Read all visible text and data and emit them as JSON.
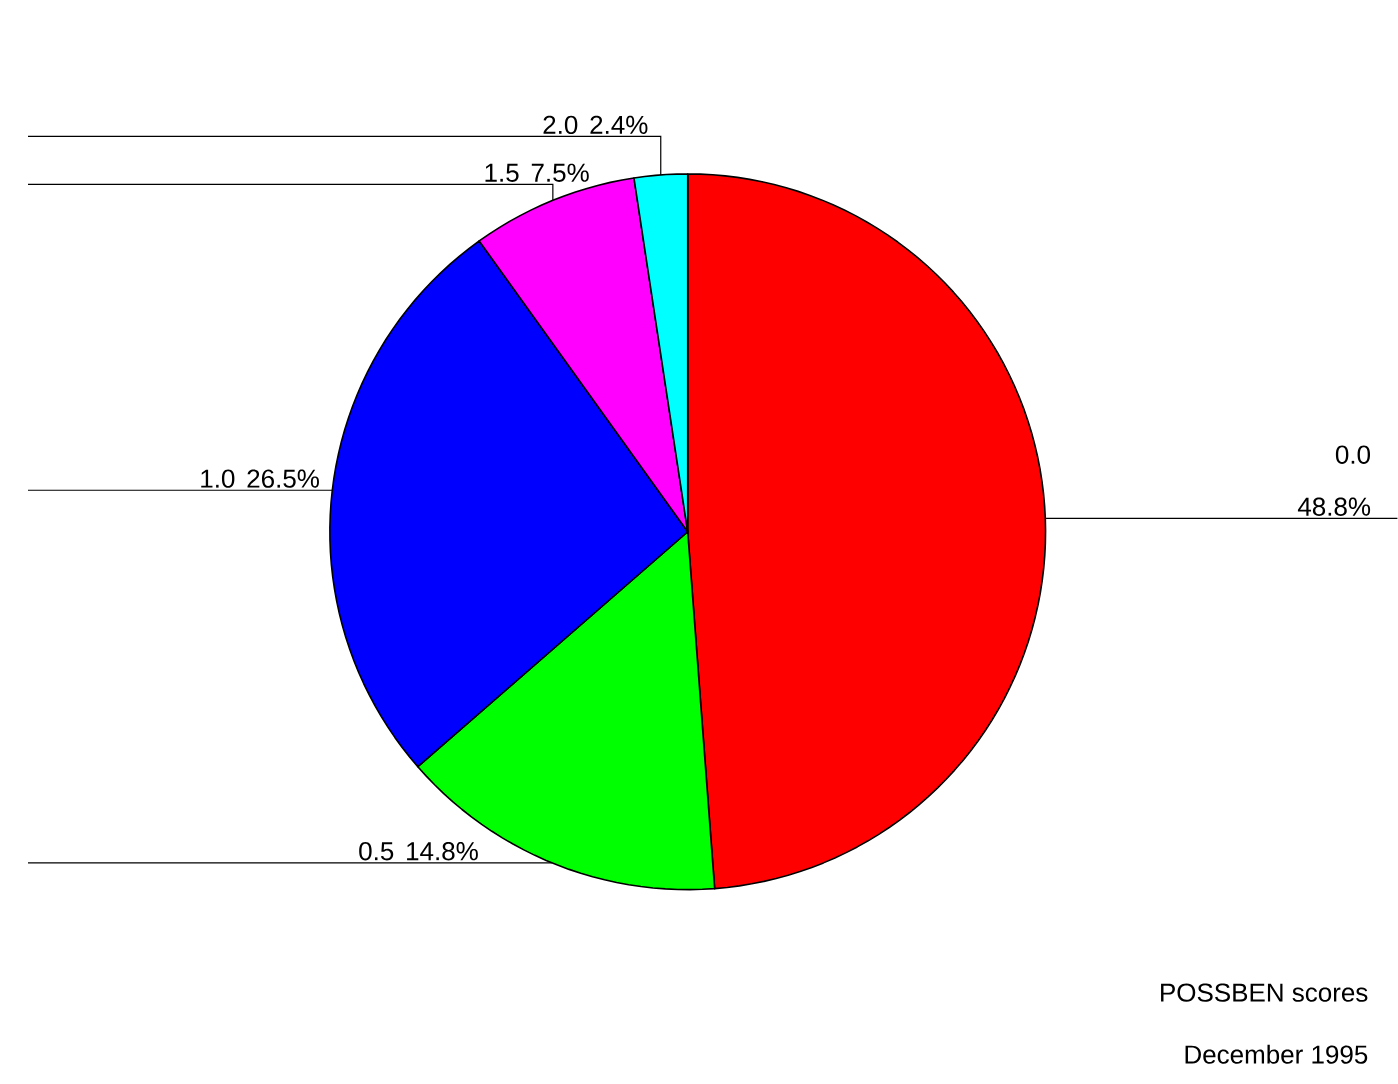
{
  "chart_data": {
    "type": "pie",
    "categories": [
      "0.0",
      "0.5",
      "1.0",
      "1.5",
      "2.0"
    ],
    "values": [
      48.8,
      14.8,
      26.5,
      7.5,
      2.4
    ],
    "colors": [
      "#ff0000",
      "#00ff00",
      "#0000ff",
      "#ff00ff",
      "#00ffff"
    ],
    "value_labels": [
      "48.8%",
      "14.8%",
      "26.5%",
      "7.5%",
      "2.4%"
    ],
    "annotations": [
      "POSSBEN scores",
      "December 1995"
    ]
  }
}
